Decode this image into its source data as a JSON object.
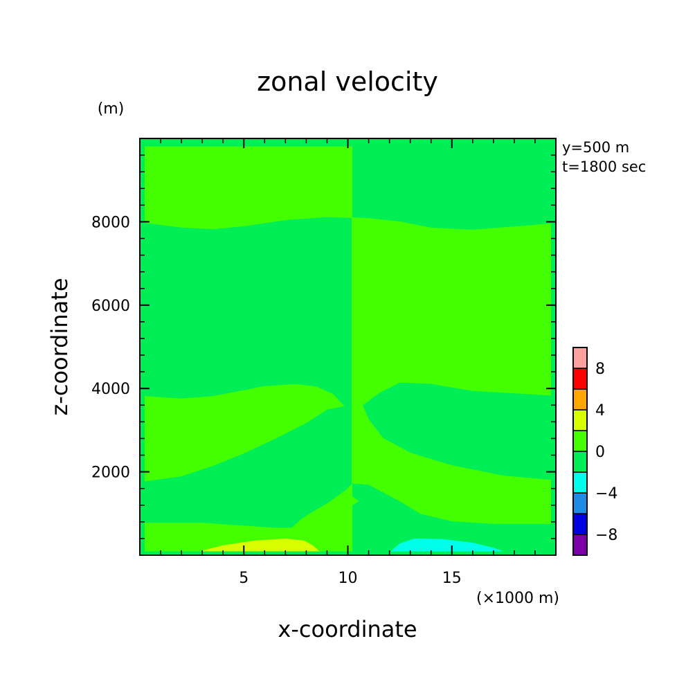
{
  "chart_data": {
    "type": "heatmap",
    "title": "zonal velocity",
    "xlabel": "x-coordinate",
    "ylabel": "z-coordinate",
    "x_unit": "(×1000 m)",
    "y_unit": "(m)",
    "xlim": [
      0,
      20
    ],
    "ylim": [
      0,
      10000
    ],
    "x_ticks": [
      5,
      10,
      15
    ],
    "y_ticks": [
      2000,
      4000,
      6000,
      8000
    ],
    "annotations": [
      "y=500 m",
      "t=1800 sec"
    ],
    "colorbar": {
      "levels": [
        -10,
        -8,
        -6,
        -4,
        -2,
        0,
        2,
        4,
        6,
        8,
        10
      ],
      "colors": [
        "#7b00a8",
        "#0000e0",
        "#1e8ce6",
        "#00ffea",
        "#00ee55",
        "#44ff00",
        "#d7ff00",
        "#ffa500",
        "#ff0000",
        "#ffa0a0"
      ],
      "tick_labels": [
        "−8",
        "−4",
        "0",
        "4",
        "8"
      ],
      "tick_values": [
        -8,
        -4,
        0,
        4,
        8
      ]
    },
    "field": {
      "background_color": "#00ee55",
      "regions": [
        {
          "name": "upper-left-band",
          "level_range": [
            0,
            2
          ],
          "color": "#44ff00",
          "polygon": [
            [
              0.25,
              9800
            ],
            [
              10.2,
              9800
            ],
            [
              10.2,
              8100
            ],
            [
              9,
              8120
            ],
            [
              7,
              8050
            ],
            [
              5,
              7900
            ],
            [
              3.5,
              7830
            ],
            [
              2,
              7870
            ],
            [
              0.25,
              7980
            ]
          ]
        },
        {
          "name": "upper-right-band",
          "level_range": [
            0,
            2
          ],
          "color": "#44ff00",
          "polygon": [
            [
              10.2,
              8100
            ],
            [
              10.2,
              1730
            ],
            [
              11,
              1700
            ],
            [
              12.5,
              1300
            ],
            [
              13.5,
              1000
            ],
            [
              15,
              820
            ],
            [
              17,
              760
            ],
            [
              19.75,
              760
            ],
            [
              19.75,
              1800
            ],
            [
              17.5,
              1900
            ],
            [
              15,
              2150
            ],
            [
              13,
              2450
            ],
            [
              11.7,
              2800
            ],
            [
              11,
              3250
            ],
            [
              10.7,
              3600
            ],
            [
              11.5,
              3900
            ],
            [
              12.5,
              4150
            ],
            [
              14,
              4120
            ],
            [
              16,
              3950
            ],
            [
              19.75,
              3840
            ],
            [
              19.75,
              7950
            ],
            [
              18,
              7880
            ],
            [
              16,
              7800
            ],
            [
              14,
              7850
            ],
            [
              12.5,
              8000
            ],
            [
              11,
              8080
            ]
          ]
        },
        {
          "name": "left-middle-band",
          "level_range": [
            0,
            2
          ],
          "color": "#44ff00",
          "polygon": [
            [
              0.25,
              3810
            ],
            [
              2,
              3750
            ],
            [
              3.5,
              3810
            ],
            [
              5,
              3950
            ],
            [
              6,
              4050
            ],
            [
              7.5,
              4100
            ],
            [
              8.5,
              4040
            ],
            [
              9.3,
              3850
            ],
            [
              9.8,
              3580
            ],
            [
              9,
              3500
            ],
            [
              8,
              3180
            ],
            [
              6.5,
              2800
            ],
            [
              5,
              2450
            ],
            [
              3.5,
              2150
            ],
            [
              2,
              1900
            ],
            [
              0.25,
              1780
            ]
          ]
        },
        {
          "name": "left-lower-band",
          "level_range": [
            0,
            2
          ],
          "color": "#44ff00",
          "polygon": [
            [
              0.25,
              770
            ],
            [
              3,
              770
            ],
            [
              5,
              700
            ],
            [
              6.5,
              650
            ],
            [
              7.3,
              650
            ],
            [
              7.8,
              870
            ],
            [
              8.3,
              1030
            ],
            [
              9,
              1230
            ],
            [
              9.9,
              1550
            ],
            [
              10.2,
              1700
            ],
            [
              10.2,
              100
            ],
            [
              0.25,
              100
            ]
          ]
        },
        {
          "name": "right-small-wedge",
          "level_range": [
            0,
            2
          ],
          "color": "#44ff00",
          "polygon": [
            [
              10.2,
              1400
            ],
            [
              10.5,
              1300
            ],
            [
              10.2,
              1200
            ]
          ]
        },
        {
          "name": "positive-cell",
          "level_range": [
            2,
            4
          ],
          "color": "#d7ff00",
          "polygon": [
            [
              3.0,
              100
            ],
            [
              4,
              230
            ],
            [
              5.5,
              340
            ],
            [
              7,
              390
            ],
            [
              7.9,
              340
            ],
            [
              8.3,
              230
            ],
            [
              8.6,
              100
            ]
          ]
        },
        {
          "name": "negative-cell",
          "level_range": [
            -4,
            -2
          ],
          "color": "#00ffea",
          "polygon": [
            [
              12.1,
              100
            ],
            [
              12.5,
              270
            ],
            [
              13.2,
              390
            ],
            [
              14.5,
              380
            ],
            [
              16,
              290
            ],
            [
              17,
              170
            ],
            [
              17.4,
              100
            ]
          ]
        }
      ]
    }
  }
}
